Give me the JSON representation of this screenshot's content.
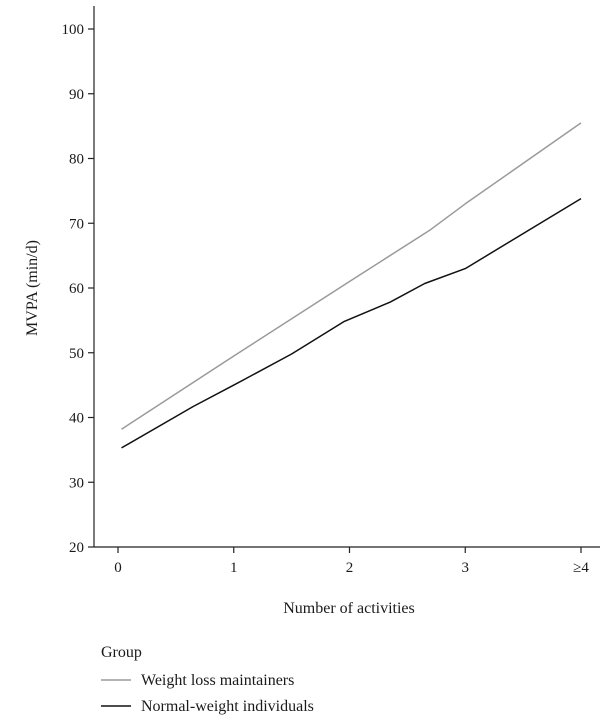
{
  "chart_data": {
    "type": "line",
    "title": "",
    "xlabel": "Number of activities",
    "ylabel": "MVPA (min/d)",
    "x_ticks": [
      "0",
      "1",
      "2",
      "3",
      "≥4"
    ],
    "ylim": [
      20,
      100
    ],
    "y_ticks": [
      20,
      30,
      40,
      50,
      60,
      70,
      80,
      90,
      100
    ],
    "grid": false,
    "legend": {
      "title": "Group",
      "placement": "bottom-left"
    },
    "series": [
      {
        "name": "Weight loss maintainers",
        "color": "#9a9a9a",
        "points": [
          {
            "x": 0.03,
            "y": 38.2
          },
          {
            "x": 1.0,
            "y": 49.5
          },
          {
            "x": 2.0,
            "y": 61.0
          },
          {
            "x": 2.7,
            "y": 69.0
          },
          {
            "x": 3.0,
            "y": 73.0
          },
          {
            "x": 4.0,
            "y": 85.5
          }
        ]
      },
      {
        "name": "Normal-weight individuals",
        "color": "#111111",
        "points": [
          {
            "x": 0.03,
            "y": 35.3
          },
          {
            "x": 0.65,
            "y": 41.7
          },
          {
            "x": 1.0,
            "y": 45.0
          },
          {
            "x": 1.5,
            "y": 49.8
          },
          {
            "x": 1.95,
            "y": 54.8
          },
          {
            "x": 2.35,
            "y": 57.8
          },
          {
            "x": 2.65,
            "y": 60.7
          },
          {
            "x": 3.0,
            "y": 63.0
          },
          {
            "x": 4.0,
            "y": 73.8
          }
        ]
      }
    ]
  }
}
